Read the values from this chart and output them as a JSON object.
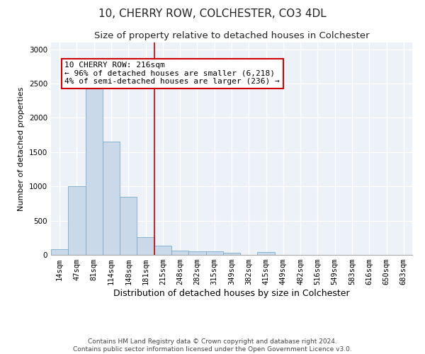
{
  "title1": "10, CHERRY ROW, COLCHESTER, CO3 4DL",
  "title2": "Size of property relative to detached houses in Colchester",
  "xlabel": "Distribution of detached houses by size in Colchester",
  "ylabel": "Number of detached properties",
  "footnote": "Contains HM Land Registry data © Crown copyright and database right 2024.\nContains public sector information licensed under the Open Government Licence v3.0.",
  "bar_labels": [
    "14sqm",
    "47sqm",
    "81sqm",
    "114sqm",
    "148sqm",
    "181sqm",
    "215sqm",
    "248sqm",
    "282sqm",
    "315sqm",
    "349sqm",
    "382sqm",
    "415sqm",
    "449sqm",
    "482sqm",
    "516sqm",
    "549sqm",
    "583sqm",
    "616sqm",
    "650sqm",
    "683sqm"
  ],
  "bar_values": [
    80,
    1000,
    2450,
    1650,
    850,
    260,
    130,
    65,
    50,
    55,
    30,
    5,
    45,
    5,
    5,
    5,
    5,
    5,
    5,
    5,
    5
  ],
  "bar_color": "#c9d9ea",
  "bar_edge_color": "#7aaac8",
  "property_line_x": 5.5,
  "property_line_color": "#cc0000",
  "annotation_text": "10 CHERRY ROW: 216sqm\n← 96% of detached houses are smaller (6,218)\n4% of semi-detached houses are larger (236) →",
  "annotation_box_color": "#cc0000",
  "ylim": [
    0,
    3100
  ],
  "yticks": [
    0,
    500,
    1000,
    1500,
    2000,
    2500,
    3000
  ],
  "background_color": "#edf2f8",
  "grid_color": "#ffffff",
  "title1_fontsize": 11,
  "title2_fontsize": 9.5,
  "xlabel_fontsize": 9,
  "ylabel_fontsize": 8,
  "tick_fontsize": 7.5,
  "annot_fontsize": 8
}
